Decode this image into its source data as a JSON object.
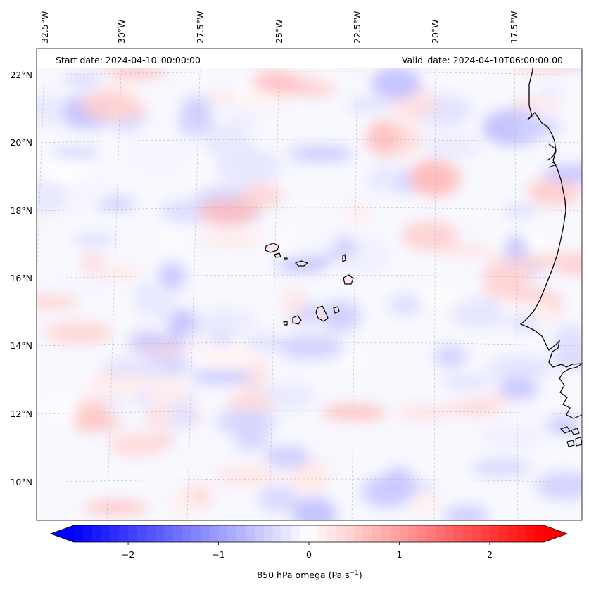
{
  "header": {
    "start_date": "Start date: 2024-04-10_00:00:00",
    "valid_date": "Valid_date: 2024-04-10T06:00:00.00"
  },
  "lon_ticks": [
    "32.5°W",
    "30°W",
    "27.5°W",
    "25°W",
    "22.5°W",
    "20°W",
    "17.5°W"
  ],
  "lat_ticks": [
    "22°N",
    "20°N",
    "18°N",
    "16°N",
    "14°N",
    "12°N",
    "10°N"
  ],
  "colorbar": {
    "label_prefix": "850 hPa omega (Pa s",
    "label_sup": "−1",
    "label_suffix": ")",
    "ticks": [
      "−2",
      "−1",
      "0",
      "1",
      "2"
    ],
    "vmin": -2.6,
    "vmax": 2.6,
    "low_color": "#0000ff",
    "mid_color": "#ffffff",
    "high_color": "#ff0000"
  },
  "chart_data": {
    "type": "heatmap",
    "variable": "850 hPa omega",
    "units": "Pa s-1",
    "lon_range": [
      -33,
      -15
    ],
    "lat_range": [
      8.9,
      22.8
    ],
    "colormap": "bwr",
    "value_range": [
      -2.6,
      2.6
    ],
    "colorbar_ticks": [
      -2,
      -1,
      0,
      1,
      2
    ],
    "gridlines": true
  }
}
